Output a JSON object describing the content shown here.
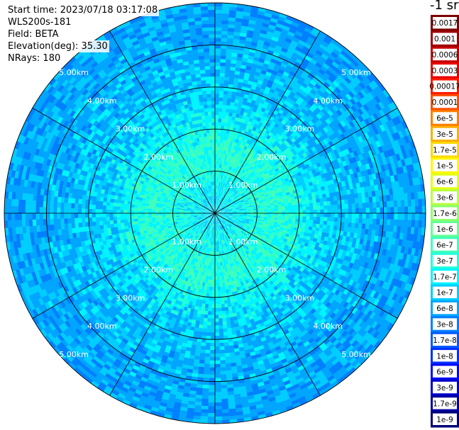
{
  "info": {
    "start_time": "Start time: 2023/07/18 03:17:08",
    "instrument": "WLS200s-181",
    "field": "Field: BETA",
    "elevation": "Elevation(deg): 35.30",
    "nrays": "NRays: 180"
  },
  "chart_data": {
    "type": "heatmap",
    "projection": "polar",
    "field": "BETA",
    "n_rays": 180,
    "range_rings_km": [
      1,
      2,
      3,
      4,
      5
    ],
    "ring_label_text": [
      "1.00km",
      "2.00km",
      "3.00km",
      "4.00km",
      "5.00km"
    ],
    "max_range_km": 5.0,
    "spoke_step_deg": 30,
    "colorbar": {
      "title": "-1 sr",
      "scale": "log",
      "labels": [
        "0.0017",
        "0.001",
        "0.0006",
        "0.0003",
        "0.00017",
        "0.0001",
        "6e-5",
        "3e-5",
        "1.7e-5",
        "1e-5",
        "6e-6",
        "3e-6",
        "1.7e-6",
        "1e-6",
        "6e-7",
        "3e-7",
        "1.7e-7",
        "1e-7",
        "6e-8",
        "3e-8",
        "1.7e-8",
        "1e-8",
        "6e-9",
        "3e-9",
        "1.7e-9",
        "1e-9"
      ],
      "colors": [
        "#7d0000",
        "#9e0000",
        "#c40000",
        "#e80000",
        "#ff1a00",
        "#ff4c00",
        "#ff7d00",
        "#ffae00",
        "#ffd700",
        "#fff700",
        "#e1ff16",
        "#b8ff3f",
        "#8bff6c",
        "#63ff94",
        "#3effb9",
        "#1effdb",
        "#00f4ff",
        "#00cdff",
        "#00a5ff",
        "#0080ff",
        "#0058ff",
        "#0030ff",
        "#0008f4",
        "#0000cc",
        "#0000a0",
        "#000078"
      ]
    },
    "value_profile": [
      {
        "range_km": 0.0,
        "beta": 1e-07
      },
      {
        "range_km": 0.5,
        "beta": 1.3e-07
      },
      {
        "range_km": 1.0,
        "beta": 2e-07
      },
      {
        "range_km": 1.5,
        "beta": 2.5e-07
      },
      {
        "range_km": 2.0,
        "beta": 1.6e-07
      },
      {
        "range_km": 2.5,
        "beta": 9e-08
      },
      {
        "range_km": 3.0,
        "beta": 7e-08
      },
      {
        "range_km": 4.0,
        "beta": 5e-08
      },
      {
        "range_km": 5.0,
        "beta": 4e-08
      }
    ]
  }
}
